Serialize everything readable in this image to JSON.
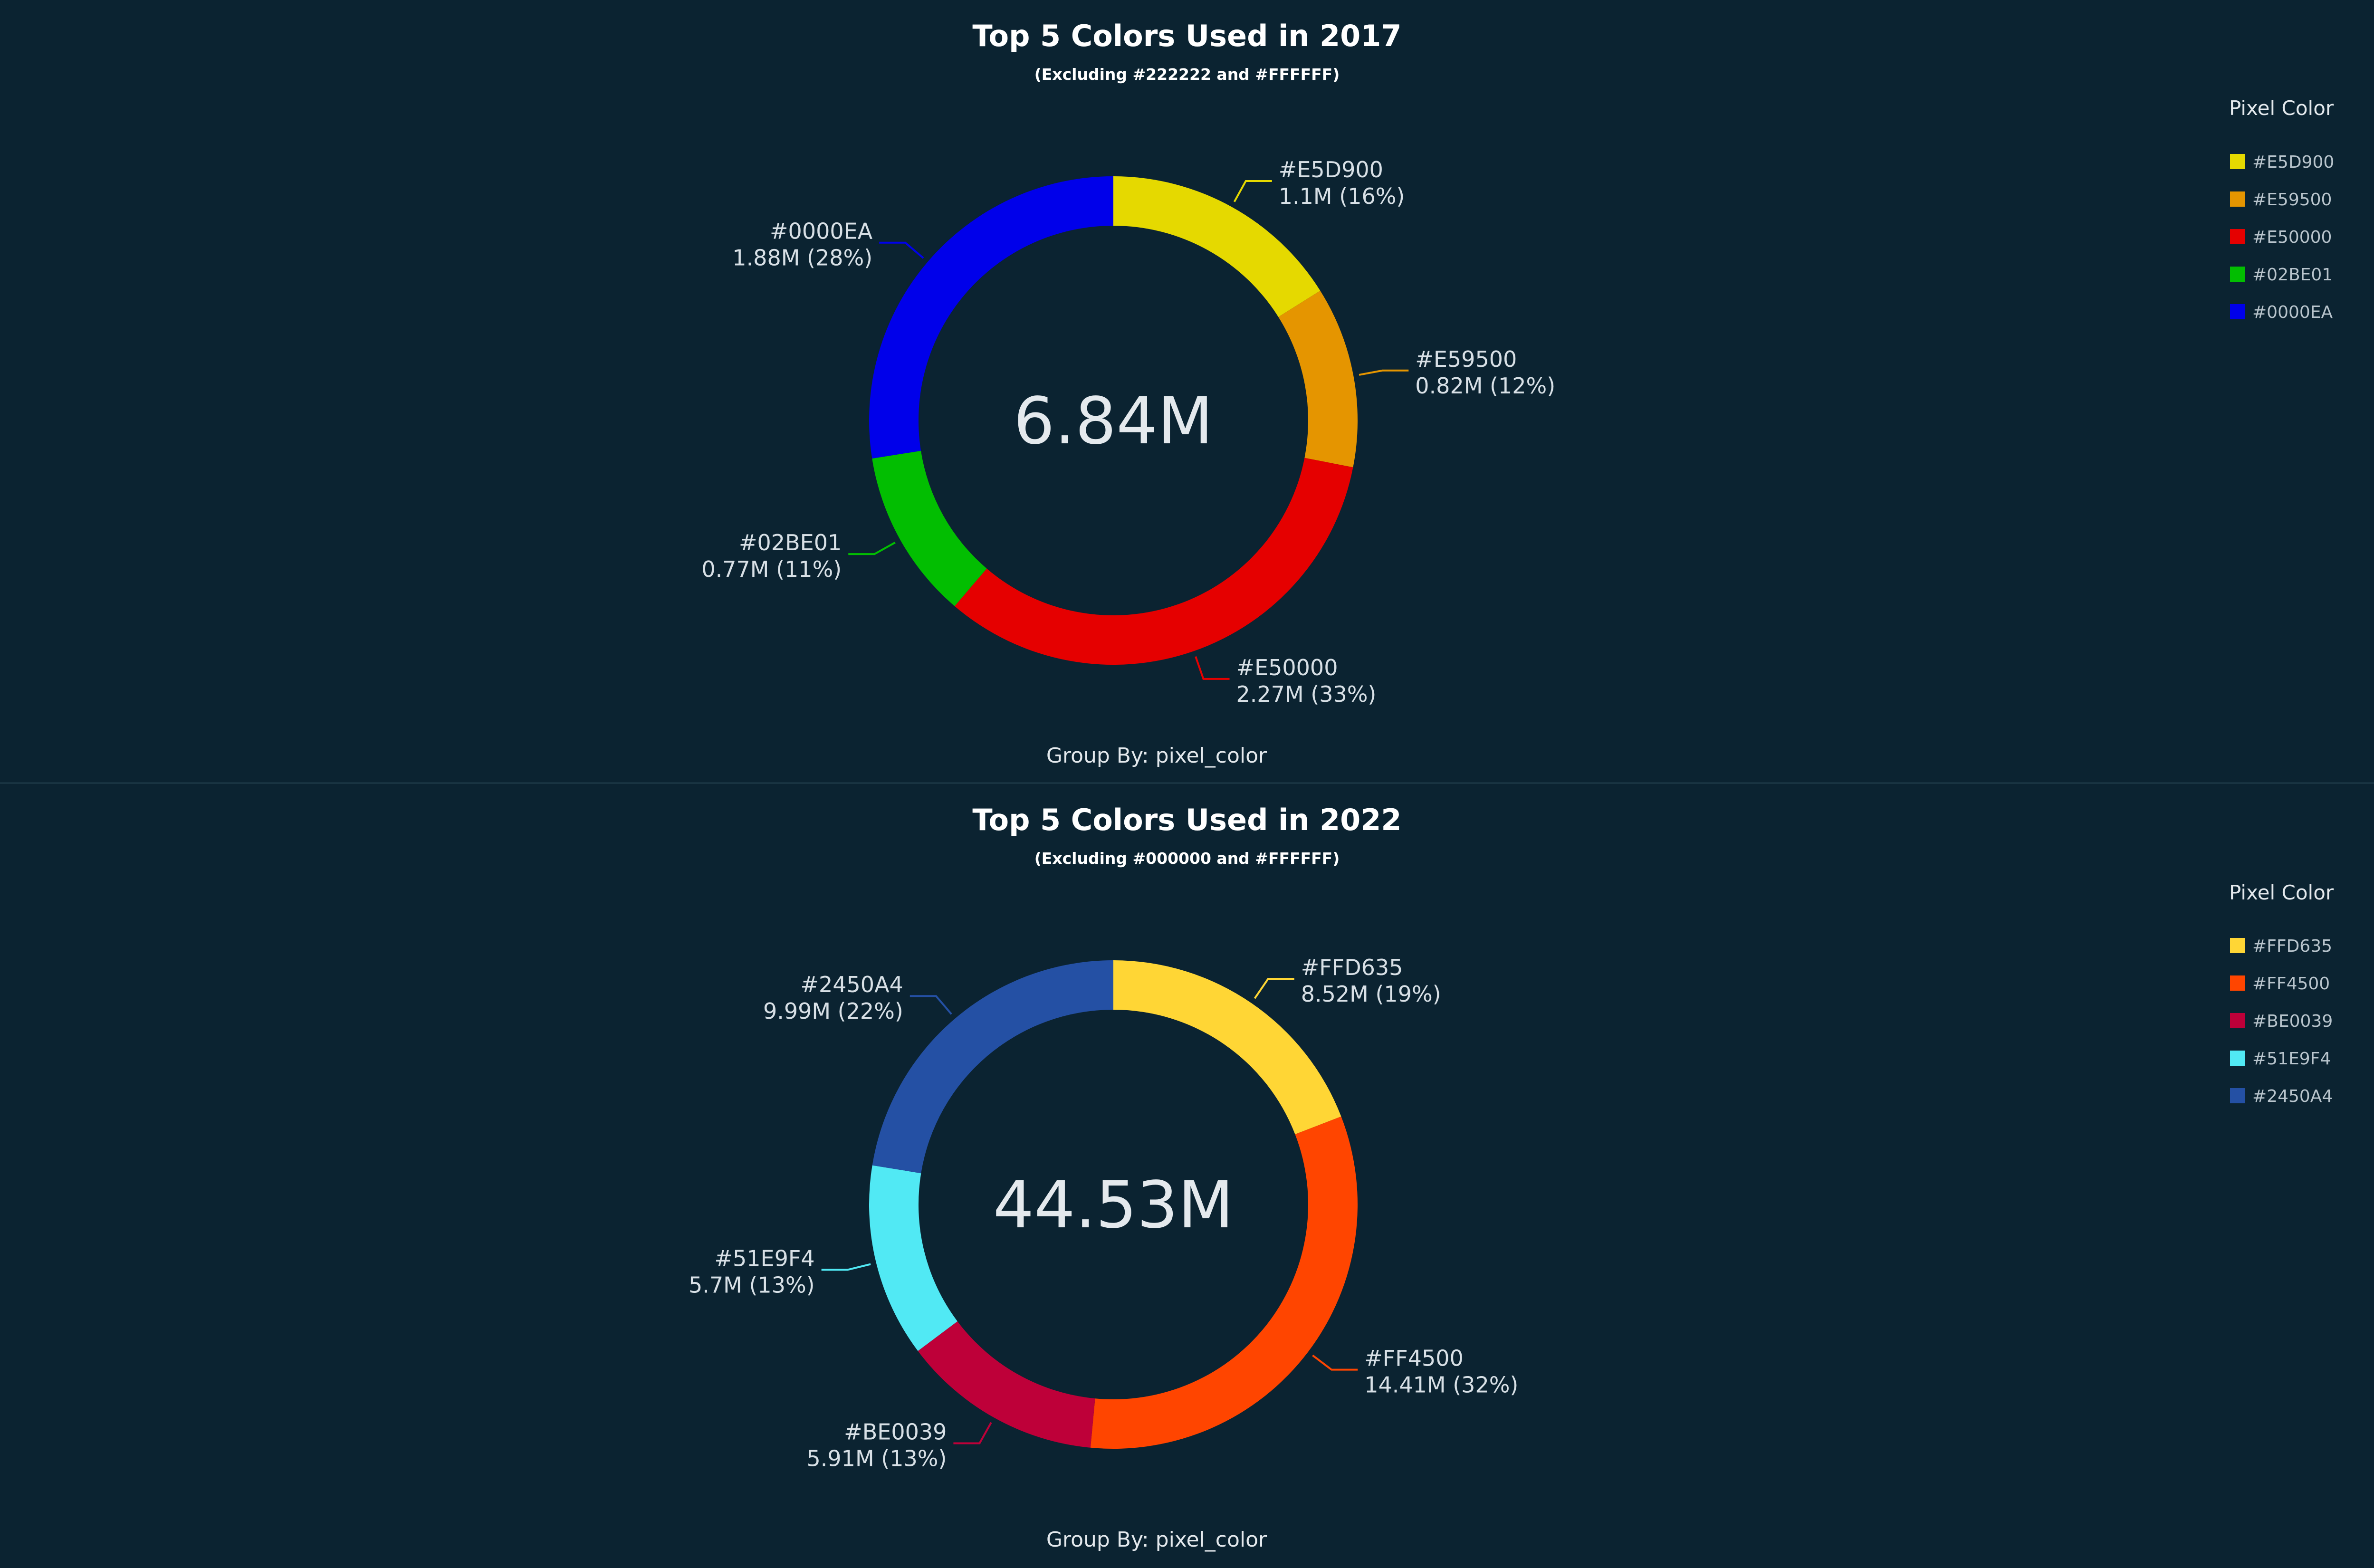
{
  "chart_data": [
    {
      "type": "pie",
      "donut": true,
      "title": "Top 5 Colors Used in 2017",
      "subtitle": "(Excluding #222222 and #FFFFFF)",
      "center_label": "6.84M",
      "footer": "Group By: pixel_color",
      "legend": {
        "title": "Pixel Color",
        "placement": "top-right"
      },
      "slices": [
        {
          "name": "#E5D900",
          "value": 1.1,
          "display": "1.1M (16%)",
          "color": "#E5D900"
        },
        {
          "name": "#E59500",
          "value": 0.82,
          "display": "0.82M (12%)",
          "color": "#E59500"
        },
        {
          "name": "#E50000",
          "value": 2.27,
          "display": "2.27M (33%)",
          "color": "#E50000"
        },
        {
          "name": "#02BE01",
          "value": 0.77,
          "display": "0.77M (11%)",
          "color": "#02BE01"
        },
        {
          "name": "#0000EA",
          "value": 1.88,
          "display": "1.88M (28%)",
          "color": "#0000EA"
        }
      ]
    },
    {
      "type": "pie",
      "donut": true,
      "title": "Top 5 Colors Used in 2022",
      "subtitle": "(Excluding #000000 and #FFFFFF)",
      "center_label": "44.53M",
      "footer": "Group By: pixel_color",
      "legend": {
        "title": "Pixel Color",
        "placement": "top-right"
      },
      "slices": [
        {
          "name": "#FFD635",
          "value": 8.52,
          "display": "8.52M (19%)",
          "color": "#FFD635"
        },
        {
          "name": "#FF4500",
          "value": 14.41,
          "display": "14.41M (32%)",
          "color": "#FF4500"
        },
        {
          "name": "#BE0039",
          "value": 5.91,
          "display": "5.91M (13%)",
          "color": "#BE0039"
        },
        {
          "name": "#51E9F4",
          "value": 5.7,
          "display": "5.7M (13%)",
          "color": "#51E9F4"
        },
        {
          "name": "#2450A4",
          "value": 9.99,
          "display": "9.99M (22%)",
          "color": "#2450A4"
        }
      ]
    }
  ]
}
